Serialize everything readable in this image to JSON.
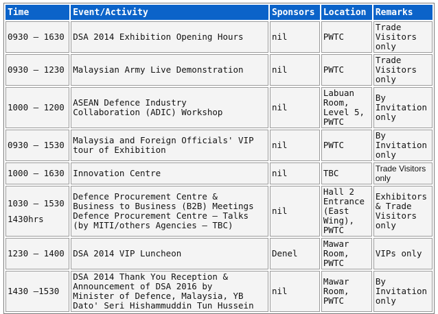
{
  "headers": [
    "Time",
    "Event/Activity",
    "Sponsors",
    "Location",
    "Remarks"
  ],
  "rows": [
    {
      "time": [
        "0930 – 1630"
      ],
      "event": [
        "DSA 2014 Exhibition Opening Hours"
      ],
      "sponsor": "nil",
      "location": [
        "PWTC"
      ],
      "remarks": [
        "Trade",
        "Visitors",
        "only"
      ]
    },
    {
      "time": [
        "0930 – 1230"
      ],
      "event": [
        "Malaysian Army Live Demonstration"
      ],
      "sponsor": "nil",
      "location": [
        "PWTC"
      ],
      "remarks": [
        "Trade",
        "Visitors",
        "only"
      ]
    },
    {
      "time": [
        "1000 – 1200"
      ],
      "event": [
        "ASEAN Defence Industry",
        "Collaboration (ADIC) Workshop"
      ],
      "sponsor": "nil",
      "location": [
        "Labuan",
        "Room,",
        "Level 5,",
        "PWTC"
      ],
      "remarks": [
        "By",
        "Invitation",
        "only"
      ]
    },
    {
      "time": [
        "0930 – 1530"
      ],
      "event": [
        "Malaysia and Foreign Officials' VIP",
        "tour of Exhibition"
      ],
      "sponsor": "nil",
      "location": [
        "PWTC"
      ],
      "remarks": [
        "By",
        "Invitation",
        "only"
      ]
    },
    {
      "time": [
        "1000 – 1630"
      ],
      "event": [
        "Innovation Centre"
      ],
      "sponsor": "nil",
      "location": [
        "TBC"
      ],
      "remarks": [
        "Trade Visitors",
        "only"
      ]
    },
    {
      "time": [
        "1030 – 1530",
        "1430hrs"
      ],
      "event": [
        "Defence Procurement Centre &",
        "Business to Business (B2B) Meetings",
        "Defence Procurement Centre – Talks",
        "(by MITI/others Agencies – TBC)"
      ],
      "sponsor": "nil",
      "location": [
        "Hall 2",
        "Entrance",
        "(East",
        "Wing),",
        "PWTC"
      ],
      "remarks": [
        "Exhibitors",
        "& Trade",
        "Visitors",
        "only"
      ]
    },
    {
      "time": [
        "1230 – 1400"
      ],
      "event": [
        "DSA 2014 VIP Luncheon"
      ],
      "sponsor": "Denel",
      "location": [
        "Mawar",
        "Room,",
        "PWTC"
      ],
      "remarks": [
        "VIPs only"
      ]
    },
    {
      "time": [
        "1430 –1530"
      ],
      "event": [
        "DSA 2014 Thank You Reception &",
        "Announcement of DSA 2016 by",
        "Minister of Defence, Malaysia, YB",
        "Dato' Seri Hishammuddin Tun Hussein"
      ],
      "sponsor": "nil",
      "location": [
        "Mawar",
        "Room,",
        "PWTC"
      ],
      "remarks": [
        "By",
        "Invitation",
        "only"
      ]
    }
  ]
}
